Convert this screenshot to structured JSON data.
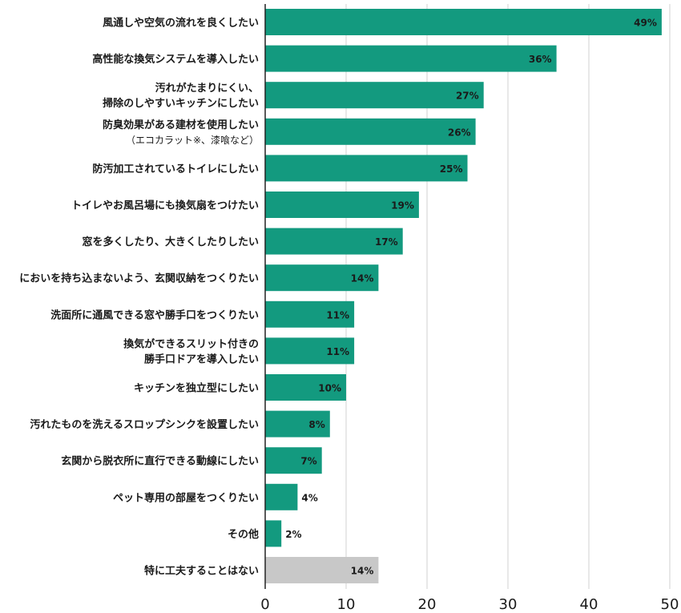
{
  "chart_data": {
    "type": "bar",
    "orientation": "horizontal",
    "title": "",
    "xlabel": "",
    "ylabel": "",
    "xlim": [
      0,
      50
    ],
    "ticks": [
      0,
      10,
      20,
      30,
      40,
      50
    ],
    "grid": true,
    "legend": "none",
    "colors": {
      "primary": "#139a7f",
      "other": "#c8c8c8"
    },
    "categories": [
      [
        "風通しや空気の流れを良くしたい"
      ],
      [
        "高性能な換気システムを導入したい"
      ],
      [
        "汚れがたまりにくい、",
        "掃除のしやすいキッチンにしたい"
      ],
      [
        "防臭効果がある建材を使用したい",
        "（エコカラット※、漆喰など）"
      ],
      [
        "防汚加工されているトイレにしたい"
      ],
      [
        "トイレやお風呂場にも換気扇をつけたい"
      ],
      [
        "窓を多くしたり、大きくしたりしたい"
      ],
      [
        "においを持ち込まないよう、玄関収納をつくりたい"
      ],
      [
        "洗面所に通風できる窓や勝手口をつくりたい"
      ],
      [
        "換気ができるスリット付きの",
        "勝手口ドアを導入したい"
      ],
      [
        "キッチンを独立型にしたい"
      ],
      [
        "汚れたものを洗えるスロップシンクを設置したい"
      ],
      [
        "玄関から脱衣所に直行できる動線にしたい"
      ],
      [
        "ペット専用の部屋をつくりたい"
      ],
      [
        "その他"
      ],
      [
        "特に工夫することはない"
      ]
    ],
    "values": [
      49,
      36,
      27,
      26,
      25,
      19,
      17,
      14,
      11,
      11,
      10,
      8,
      7,
      4,
      2,
      14
    ],
    "value_labels": [
      "49%",
      "36%",
      "27%",
      "26%",
      "25%",
      "19%",
      "17%",
      "14%",
      "11%",
      "11%",
      "10%",
      "8%",
      "7%",
      "4%",
      "2%",
      "14%"
    ],
    "bar_color_keys": [
      "primary",
      "primary",
      "primary",
      "primary",
      "primary",
      "primary",
      "primary",
      "primary",
      "primary",
      "primary",
      "primary",
      "primary",
      "primary",
      "primary",
      "primary",
      "other"
    ]
  }
}
